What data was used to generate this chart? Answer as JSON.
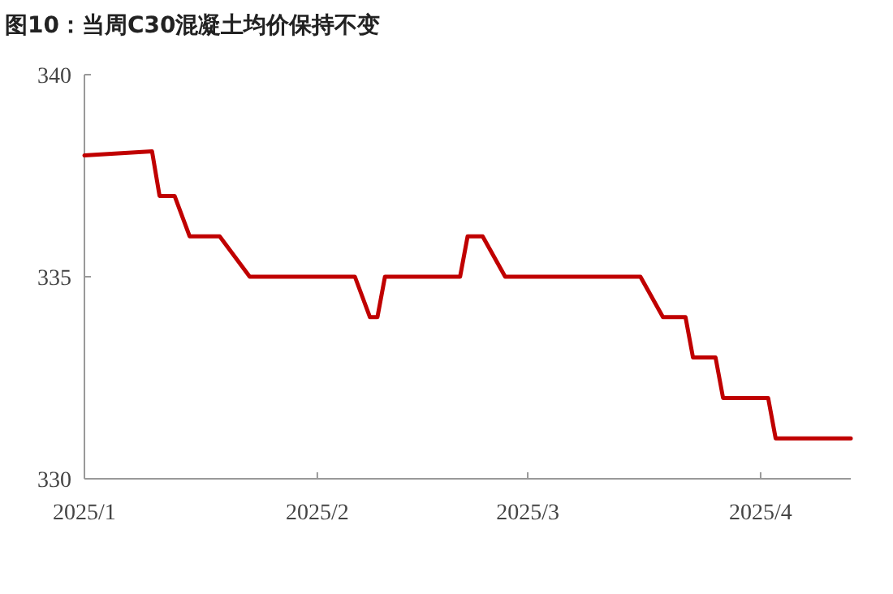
{
  "chart_data": {
    "type": "line",
    "title": "图10：当周C30混凝土均价保持不变",
    "x": [
      "2025-01-01",
      "2025-01-10",
      "2025-01-11",
      "2025-01-13",
      "2025-01-15",
      "2025-01-19",
      "2025-01-23",
      "2025-02-06",
      "2025-02-08",
      "2025-02-09",
      "2025-02-10",
      "2025-02-20",
      "2025-02-21",
      "2025-02-23",
      "2025-02-26",
      "2025-03-16",
      "2025-03-19",
      "2025-03-22",
      "2025-03-23",
      "2025-03-26",
      "2025-03-27",
      "2025-04-02",
      "2025-04-03",
      "2025-04-13"
    ],
    "series": [
      {
        "color": "#c00000",
        "values": [
          338,
          338.1,
          337,
          337,
          336,
          336,
          335,
          335,
          334,
          334,
          335,
          335,
          336,
          336,
          335,
          335,
          334,
          334,
          333,
          333,
          332,
          332,
          331,
          331
        ]
      }
    ],
    "xlim": [
      "2025-01-01",
      "2025-04-13"
    ],
    "xticks": [
      {
        "value": "2025-01-01",
        "label": "2025/1"
      },
      {
        "value": "2025-02-01",
        "label": "2025/2"
      },
      {
        "value": "2025-03-01",
        "label": "2025/3"
      },
      {
        "value": "2025-04-01",
        "label": "2025/4"
      }
    ],
    "ylim": [
      330,
      340
    ],
    "yticks": [
      330,
      335,
      340
    ],
    "grid": false,
    "marker": "none",
    "line_style": "solid"
  }
}
